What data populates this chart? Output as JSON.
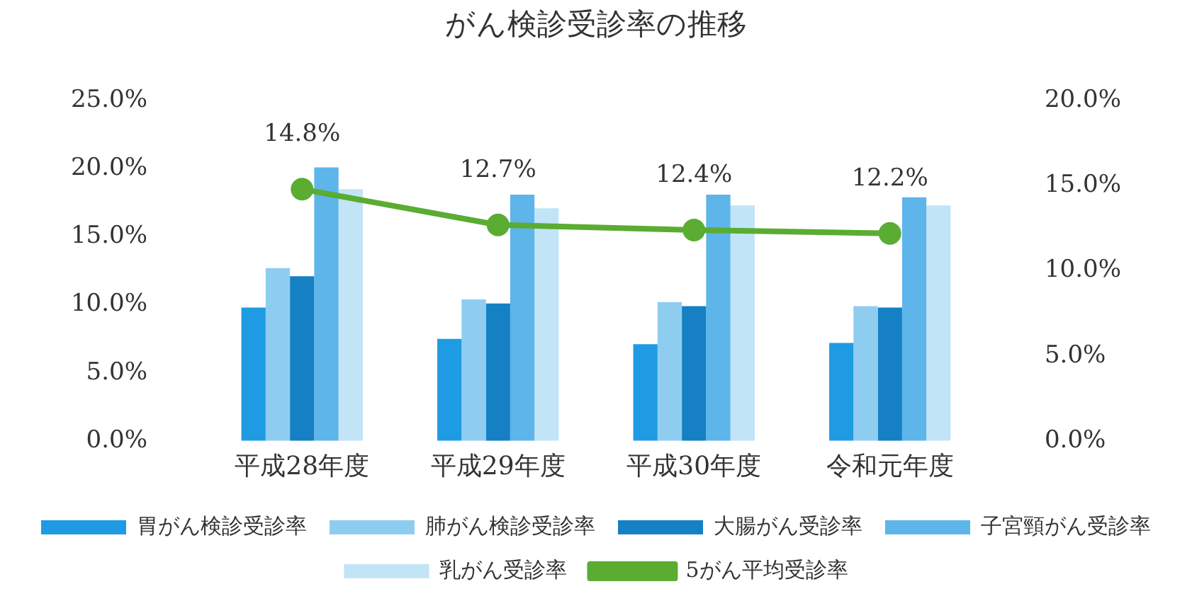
{
  "chart_data": {
    "type": "bar",
    "title": "がん検診受診率の推移",
    "categories": [
      "平成28年度",
      "平成29年度",
      "平成30年度",
      "令和元年度"
    ],
    "series": [
      {
        "name": "胃がん検診受診率",
        "color": "#1e9be2",
        "values": [
          9.8,
          7.5,
          7.1,
          7.2
        ]
      },
      {
        "name": "肺がん検診受診率",
        "color": "#8fcdf0",
        "values": [
          12.7,
          10.4,
          10.2,
          9.9
        ]
      },
      {
        "name": "大腸がん受診率",
        "color": "#1580c4",
        "values": [
          12.1,
          10.1,
          9.9,
          9.8
        ]
      },
      {
        "name": "子宮頸がん受診率",
        "color": "#5db5ea",
        "values": [
          20.1,
          18.1,
          18.1,
          17.9
        ]
      },
      {
        "name": "乳がん受診率",
        "color": "#c2e4f7",
        "values": [
          18.5,
          17.1,
          17.3,
          17.3
        ]
      },
      {
        "name": "5がん平均受診率",
        "type": "line",
        "axis": "y2",
        "color": "#5aac32",
        "values": [
          14.8,
          12.7,
          12.4,
          12.2
        ],
        "value_labels": [
          "14.8%",
          "12.7%",
          "12.4%",
          "12.2%"
        ]
      }
    ],
    "ylim": [
      0,
      25
    ],
    "yticks": [
      {
        "value": 0,
        "label": "0.0%"
      },
      {
        "value": 5,
        "label": "5.0%"
      },
      {
        "value": 10,
        "label": "10.0%"
      },
      {
        "value": 15,
        "label": "15.0%"
      },
      {
        "value": 20,
        "label": "20.0%"
      },
      {
        "value": 25,
        "label": "25.0%"
      }
    ],
    "y2lim": [
      0,
      20
    ],
    "y2ticks": [
      {
        "value": 0,
        "label": "0.0%"
      },
      {
        "value": 5,
        "label": "5.0%"
      },
      {
        "value": 10,
        "label": "10.0%"
      },
      {
        "value": 15,
        "label": "15.0%"
      },
      {
        "value": 20,
        "label": "20.0%"
      }
    ],
    "grid": false,
    "legend": "bottom",
    "marker": "circle"
  }
}
